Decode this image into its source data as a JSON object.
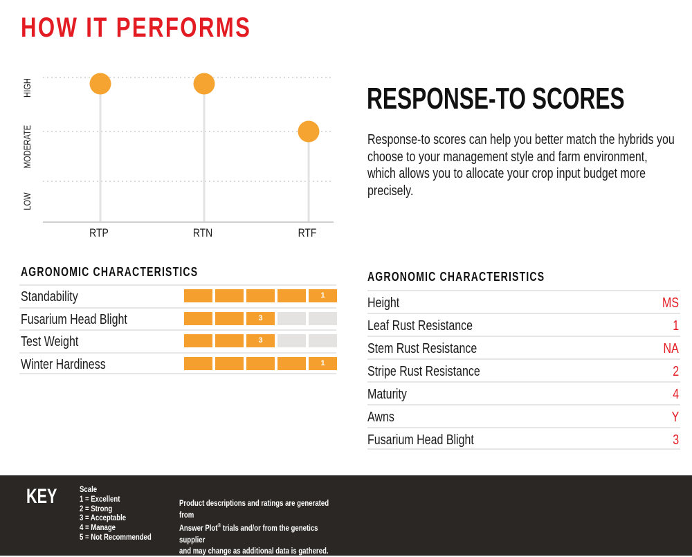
{
  "page_title": "HOW IT PERFORMS",
  "chart_data": {
    "type": "scatter",
    "categories": [
      "RTP",
      "RTN",
      "RTF"
    ],
    "y_levels": [
      "LOW",
      "MODERATE",
      "HIGH"
    ],
    "values": [
      "HIGH",
      "HIGH",
      "MODERATE"
    ],
    "marker_color": "#f5a431",
    "grid": true
  },
  "response_to": {
    "title": "RESPONSE-TO SCORES",
    "body": "Response-to scores can help you better match the hybrids you choose to your management style and farm environment, which allows you to allocate your crop input budget more precisely."
  },
  "agronomic_bars": {
    "heading": "AGRONOMIC CHARACTERISTICS",
    "bar_color": "#f5a02e",
    "empty_color": "#e5e3e1",
    "rows": [
      {
        "name": "Standability",
        "score": "1",
        "filled": 5
      },
      {
        "name": "Fusarium Head Blight",
        "score": "3",
        "filled": 3
      },
      {
        "name": "Test Weight",
        "score": "3",
        "filled": 3
      },
      {
        "name": "Winter Hardiness",
        "score": "1",
        "filled": 5
      }
    ]
  },
  "agronomic_list": {
    "heading": "AGRONOMIC CHARACTERISTICS",
    "rows": [
      {
        "name": "Height",
        "value": "MS"
      },
      {
        "name": "Leaf Rust Resistance",
        "value": "1"
      },
      {
        "name": "Stem Rust Resistance",
        "value": "NA"
      },
      {
        "name": "Stripe Rust Resistance",
        "value": "2"
      },
      {
        "name": "Maturity",
        "value": "4"
      },
      {
        "name": "Awns",
        "value": "Y"
      },
      {
        "name": "Fusarium Head Blight",
        "value": "3"
      }
    ]
  },
  "key": {
    "title": "KEY",
    "scale_title": "Scale",
    "scale": [
      "1 = Excellent",
      "2 = Strong",
      "3 = Acceptable",
      "4 = Manage",
      "5 = Not Recommended"
    ],
    "disclaimer_1": "Product descriptions and ratings are generated from",
    "disclaimer_2a": "Answer Plot",
    "disclaimer_reg": "®",
    "disclaimer_2b": " trials and/or from the genetics supplier",
    "disclaimer_3": "and may change as additional data is gathered."
  },
  "colors": {
    "accent_red": "#e31b23",
    "footer_bg": "#2b2724"
  }
}
